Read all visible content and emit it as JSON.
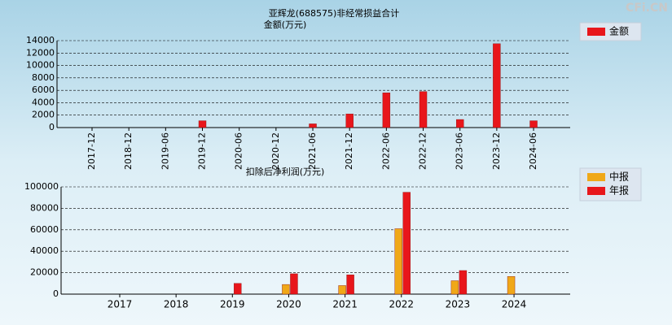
{
  "watermark": "CFi.CN",
  "chart_data": [
    {
      "type": "bar",
      "title": "亚辉龙(688575)非经常损益合计",
      "y_label": "金额(万元)",
      "categories": [
        "2017-12",
        "2018-12",
        "2019-06",
        "2019-12",
        "2020-06",
        "2020-12",
        "2021-06",
        "2021-12",
        "2022-06",
        "2022-12",
        "2023-06",
        "2023-12",
        "2024-06"
      ],
      "series": [
        {
          "name": "金额",
          "color": "#e8161b",
          "values": [
            null,
            null,
            null,
            1100,
            null,
            null,
            600,
            2200,
            5600,
            5800,
            1300,
            13500,
            1100
          ]
        }
      ],
      "ylim": [
        0,
        14000
      ],
      "yticks": [
        0,
        2000,
        4000,
        6000,
        8000,
        10000,
        12000,
        14000
      ],
      "grid": true,
      "legend": "right"
    },
    {
      "type": "bar",
      "title": "扣除后净利润(万元)",
      "categories": [
        "2017",
        "2018",
        "2019",
        "2020",
        "2021",
        "2022",
        "2023",
        "2024"
      ],
      "series": [
        {
          "name": "中报",
          "color": "#f0a818",
          "values": [
            null,
            null,
            null,
            9000,
            8000,
            61000,
            12500,
            16500
          ]
        },
        {
          "name": "年报",
          "color": "#e8161b",
          "values": [
            null,
            null,
            10000,
            19000,
            18000,
            95000,
            22000,
            null
          ]
        }
      ],
      "ylim": [
        0,
        100000
      ],
      "yticks": [
        0,
        20000,
        40000,
        60000,
        80000,
        100000
      ],
      "grid": true,
      "legend": "right"
    }
  ]
}
